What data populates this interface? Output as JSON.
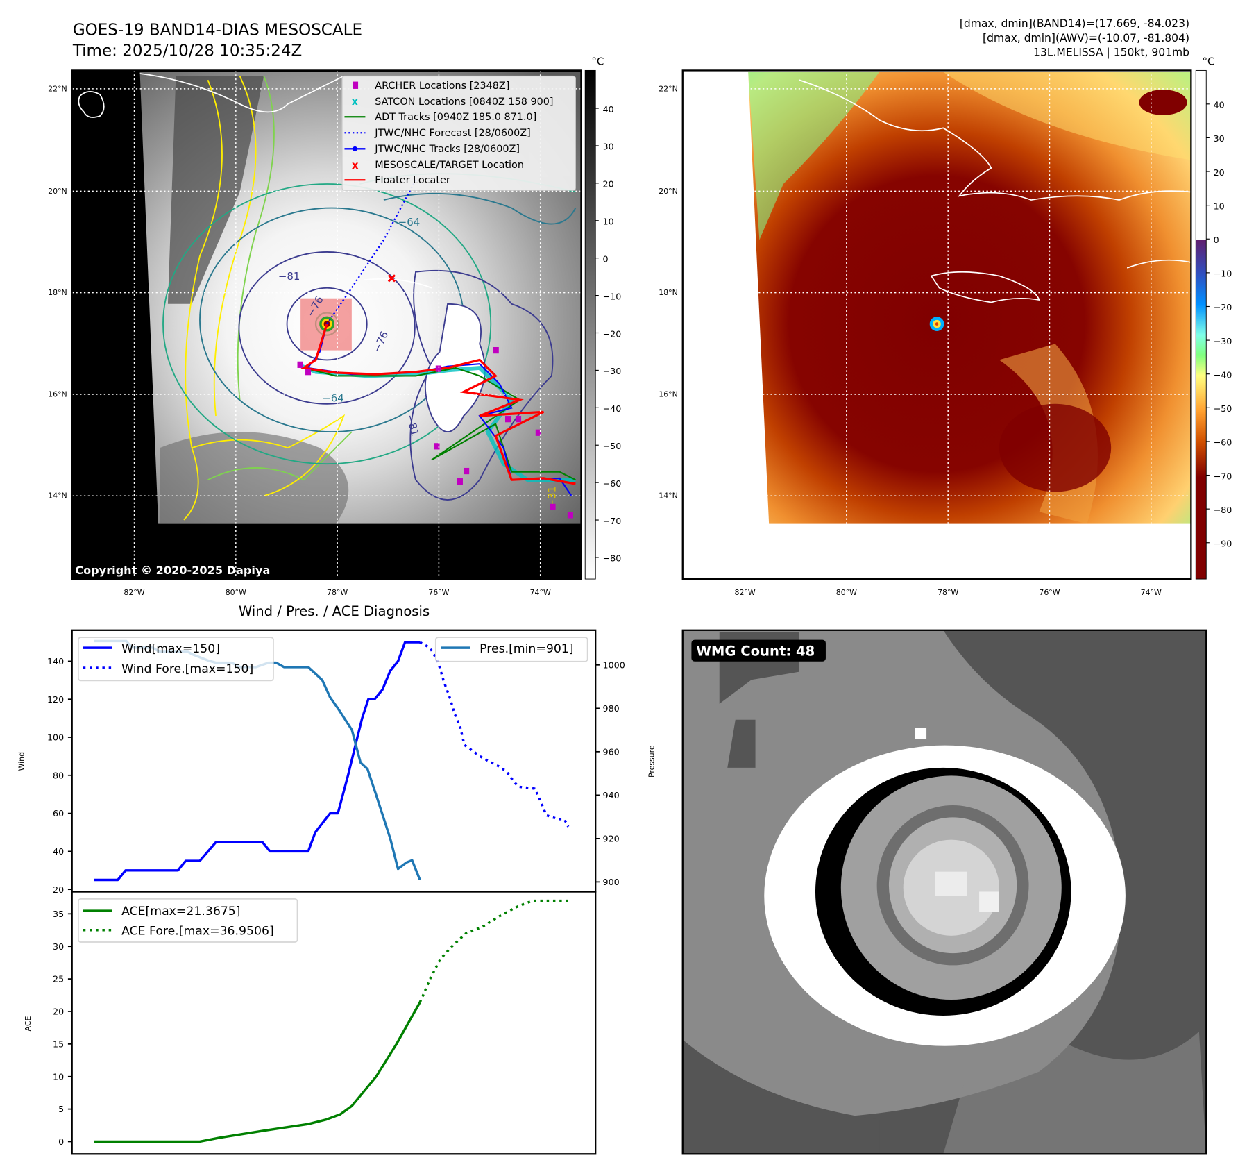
{
  "header": {
    "title": "GOES-19 BAND14-DIAS MESOSCALE",
    "time": "Time: 2025/10/28 10:35:24Z",
    "info_line1": "[dmax, dmin](BAND14)=(17.669, -84.023)",
    "info_line2": "[dmax, dmin](AWV)=(-10.07, -81.804)",
    "info_line3": "13L.MELISSA | 150kt, 901mb"
  },
  "map_left": {
    "lat_labels": [
      "22°N",
      "20°N",
      "18°N",
      "16°N",
      "14°N"
    ],
    "lon_labels": [
      "82°W",
      "80°W",
      "78°W",
      "76°W",
      "74°W"
    ],
    "colorbar_unit": "°C",
    "colorbar_ticks": [
      "40",
      "30",
      "20",
      "10",
      "0",
      "−10",
      "−20",
      "−30",
      "−40",
      "−50",
      "−60",
      "−70",
      "−80"
    ],
    "contour_labels": [
      "−81",
      "−76",
      "−64",
      "−64",
      "−76",
      "−81",
      "−31"
    ],
    "copyright": "Copyright © 2020-2025 Dapiya",
    "legend": [
      {
        "label": "ARCHER Locations [2348Z]",
        "color": "#c000c0"
      },
      {
        "label": "SATCON Locations [0840Z 158 900]",
        "color": "#00c0c0"
      },
      {
        "label": "ADT Tracks [0940Z 185.0 871.0]",
        "color": "#008000"
      },
      {
        "label": "JTWC/NHC Forecast [28/0600Z]",
        "color": "#0000ff"
      },
      {
        "label": "JTWC/NHC Tracks [28/0600Z]",
        "color": "#0000ff"
      },
      {
        "label": "MESOSCALE/TARGET Location",
        "color": "#ff0000"
      },
      {
        "label": "Floater Locater",
        "color": "#ff0000"
      }
    ]
  },
  "map_right": {
    "lat_labels": [
      "22°N",
      "20°N",
      "18°N",
      "16°N",
      "14°N"
    ],
    "lon_labels": [
      "82°W",
      "80°W",
      "78°W",
      "76°W",
      "74°W"
    ],
    "colorbar_unit": "°C",
    "colorbar_ticks": [
      "40",
      "30",
      "20",
      "10",
      "0",
      "−10",
      "−20",
      "−30",
      "−40",
      "−50",
      "−60",
      "−70",
      "−80",
      "−90"
    ]
  },
  "wmg": {
    "label": "WMG Count: 48"
  },
  "chart_data": [
    {
      "type": "line",
      "title": "Wind / Pres. / ACE Diagnosis",
      "ylabel": "Wind",
      "y2label": "Pressure",
      "ylim": [
        18.8,
        156.3
      ],
      "y2lim": [
        895.5,
        1016
      ],
      "xlim": [
        -2.87,
        64.2
      ],
      "yticks": [
        20,
        40,
        60,
        80,
        100,
        120,
        140
      ],
      "y2ticks": [
        900,
        920,
        940,
        960,
        980,
        1000
      ],
      "legend_left": [
        "Wind[max=150]",
        "Wind Fore.[max=150]"
      ],
      "legend_right": [
        "Pres.[min=901]"
      ],
      "series": [
        {
          "name": "Wind[max=150]",
          "style": "solid",
          "axis": "left",
          "color": "#0000ff",
          "points": [
            [
              0,
              25
            ],
            [
              3,
              25
            ],
            [
              4,
              30
            ],
            [
              10.7,
              30
            ],
            [
              11.7,
              35
            ],
            [
              13.5,
              35
            ],
            [
              15.6,
              45
            ],
            [
              21.5,
              45
            ],
            [
              22.5,
              40
            ],
            [
              27.4,
              40
            ],
            [
              28.3,
              50
            ],
            [
              30.2,
              60
            ],
            [
              31.2,
              60
            ],
            [
              32.5,
              80
            ],
            [
              33.7,
              100
            ],
            [
              34.3,
              110
            ],
            [
              35.1,
              120
            ],
            [
              35.9,
              120
            ],
            [
              36.9,
              125
            ],
            [
              37.9,
              135
            ],
            [
              38.9,
              140
            ],
            [
              39.8,
              150
            ],
            [
              41.7,
              150
            ]
          ]
        },
        {
          "name": "Wind Fore.[max=150]",
          "style": "dotted",
          "axis": "left",
          "color": "#0000ff",
          "points": [
            [
              41.7,
              150
            ],
            [
              43,
              147
            ],
            [
              44,
              140
            ],
            [
              44.8,
              129
            ],
            [
              45.6,
              120
            ],
            [
              46.1,
              113
            ],
            [
              46.9,
              105
            ],
            [
              47.4,
              96
            ],
            [
              48.4,
              93
            ],
            [
              49.4,
              90
            ],
            [
              50.7,
              87
            ],
            [
              51.7,
              85
            ],
            [
              52.8,
              82
            ],
            [
              53.5,
              78
            ],
            [
              54.3,
              74
            ],
            [
              56.4,
              73
            ],
            [
              57.1,
              67
            ],
            [
              57.9,
              59
            ],
            [
              59.4,
              57
            ],
            [
              60.2,
              57
            ],
            [
              60.7,
              53
            ]
          ]
        },
        {
          "name": "Pres.[min=901]",
          "style": "solid",
          "axis": "right",
          "color": "#1f77b4",
          "points": [
            [
              0,
              1011
            ],
            [
              4.1,
              1011
            ],
            [
              4.8,
              1008
            ],
            [
              7.4,
              1008
            ],
            [
              8.4,
              1006
            ],
            [
              12,
              1006
            ],
            [
              12.5,
              1005
            ],
            [
              14.6,
              1002
            ],
            [
              15.6,
              1001
            ],
            [
              17.6,
              1001
            ],
            [
              18.7,
              999
            ],
            [
              20.7,
              999
            ],
            [
              22.3,
              1001
            ],
            [
              23.3,
              1001
            ],
            [
              24.3,
              999
            ],
            [
              27.4,
              999
            ],
            [
              29.2,
              993
            ],
            [
              30.2,
              985
            ],
            [
              31.2,
              980
            ],
            [
              33,
              970
            ],
            [
              34.1,
              955
            ],
            [
              35,
              952
            ],
            [
              36.1,
              940
            ],
            [
              37.9,
              920
            ],
            [
              38.9,
              906
            ],
            [
              40,
              909
            ],
            [
              40.7,
              910
            ],
            [
              41.7,
              901
            ]
          ]
        }
      ]
    },
    {
      "type": "line",
      "ylabel": "ACE",
      "ylim": [
        -1.9,
        38.4
      ],
      "xlim": [
        -2.87,
        64.2
      ],
      "yticks": [
        0,
        5,
        10,
        15,
        20,
        25,
        30,
        35
      ],
      "legend_left": [
        "ACE[max=21.3675]",
        "ACE Fore.[max=36.9506]"
      ],
      "series": [
        {
          "name": "ACE[max=21.3675]",
          "style": "solid",
          "axis": "left",
          "color": "#008000",
          "points": [
            [
              0,
              0
            ],
            [
              13.5,
              0
            ],
            [
              16,
              0.6
            ],
            [
              21.8,
              1.7
            ],
            [
              27.4,
              2.7
            ],
            [
              29.7,
              3.4
            ],
            [
              31.5,
              4.2
            ],
            [
              33,
              5.5
            ],
            [
              36.1,
              10
            ],
            [
              38.7,
              15
            ],
            [
              41.7,
              21.4
            ]
          ]
        },
        {
          "name": "ACE Fore.[max=36.9506]",
          "style": "dotted",
          "axis": "left",
          "color": "#008000",
          "points": [
            [
              41.7,
              21.4
            ],
            [
              42.3,
              23
            ],
            [
              43,
              25
            ],
            [
              44.3,
              28
            ],
            [
              45.8,
              30
            ],
            [
              47.6,
              32
            ],
            [
              49.7,
              33
            ],
            [
              51.7,
              34.5
            ],
            [
              54,
              36
            ],
            [
              56.1,
              37
            ],
            [
              61,
              37
            ]
          ]
        }
      ]
    }
  ]
}
